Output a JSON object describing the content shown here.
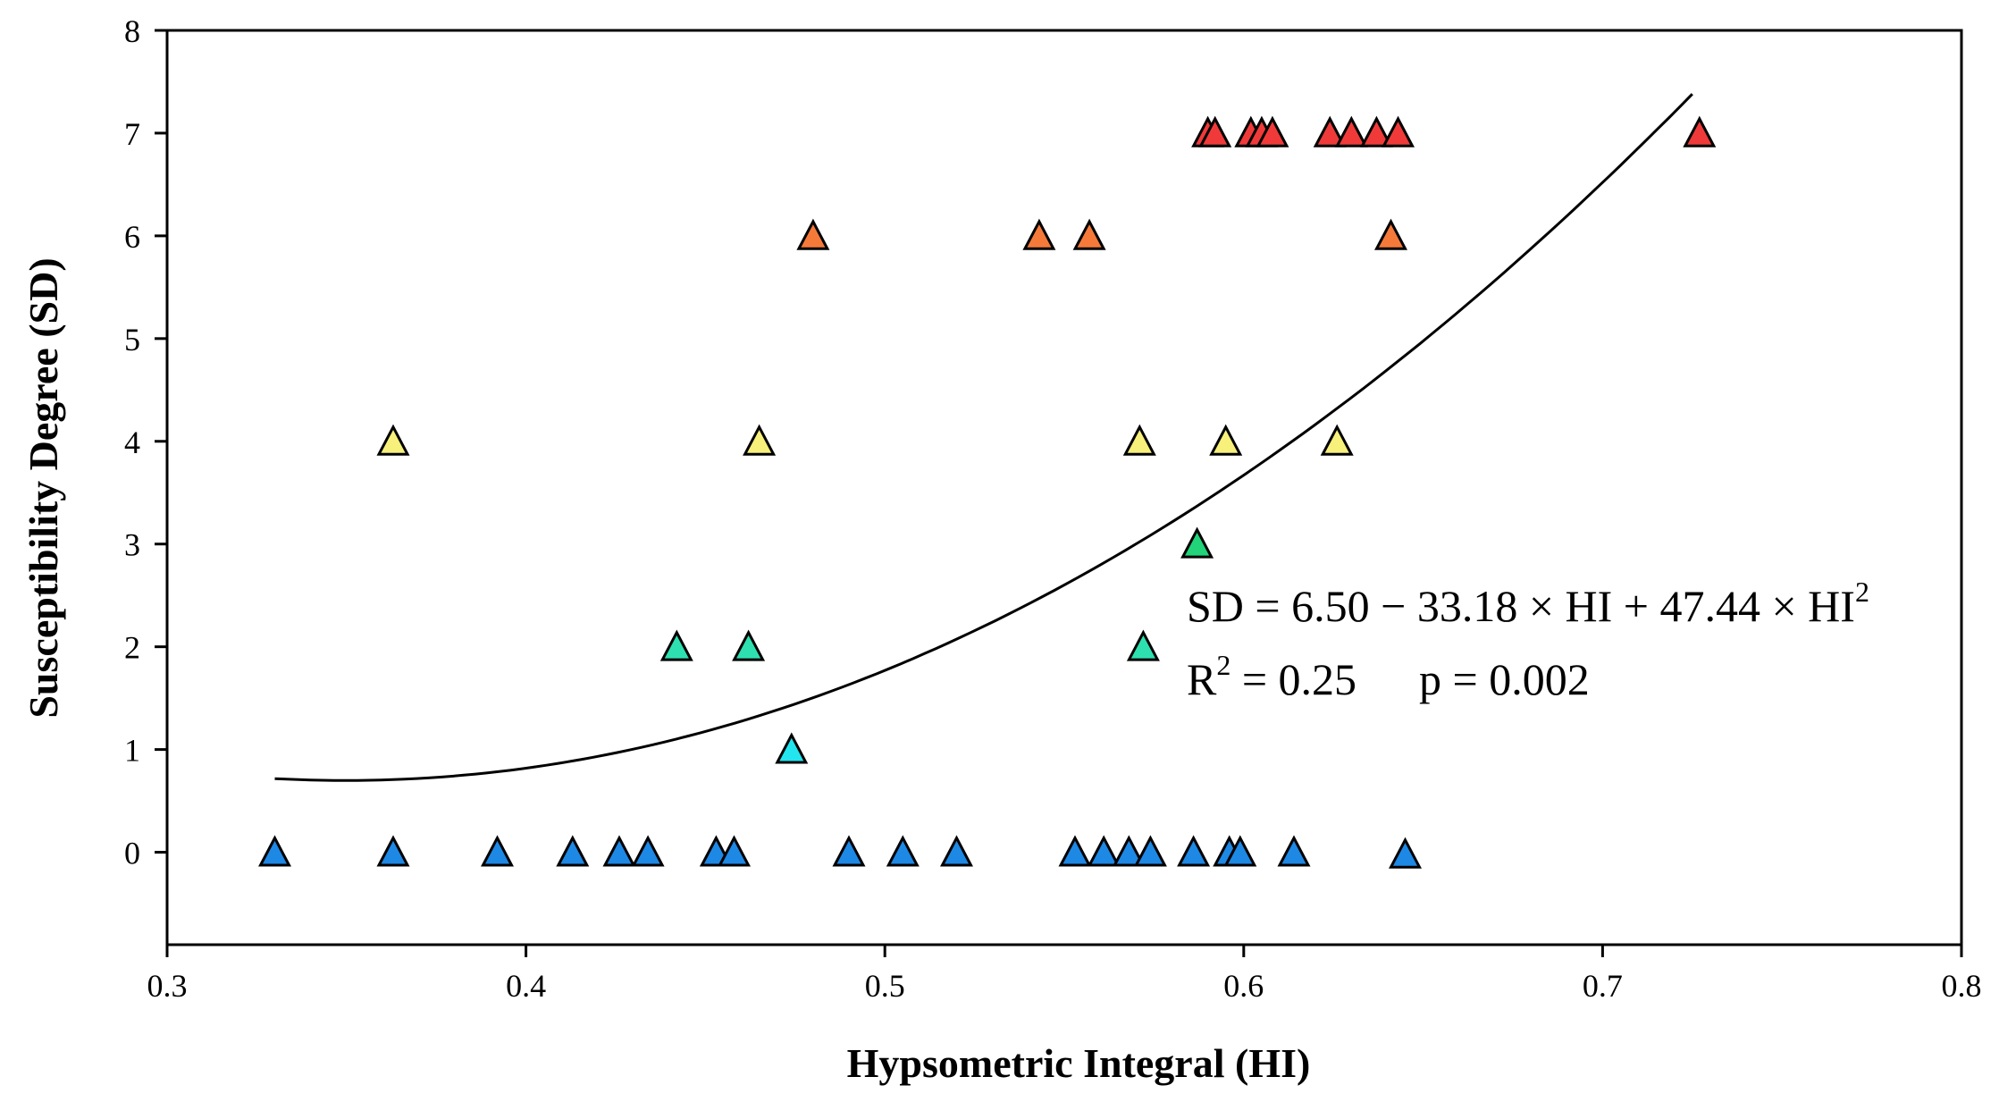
{
  "chart_data": {
    "type": "scatter",
    "title": "",
    "xlabel": "Hypsometric Integral (HI)",
    "ylabel": "Susceptibility Degree (SD)",
    "xlim": [
      0.3,
      0.8
    ],
    "ylim": [
      -0.9,
      8
    ],
    "x_ticks": [
      0.3,
      0.4,
      0.5,
      0.6,
      0.7,
      0.8
    ],
    "x_tick_labels": [
      "0.3",
      "0.4",
      "0.5",
      "0.6",
      "0.7",
      "0.8"
    ],
    "y_ticks": [
      0,
      1,
      2,
      3,
      4,
      5,
      6,
      7,
      8
    ],
    "y_tick_labels": [
      "0",
      "1",
      "2",
      "3",
      "4",
      "5",
      "6",
      "7",
      "8"
    ],
    "marker": "triangle",
    "sd_colors": {
      "0": "#1E88E5",
      "1": "#22E5F0",
      "2": "#2EE0B0",
      "3": "#22D37A",
      "4": "#F7F07A",
      "6": "#F57A3A",
      "7": "#F03A3A"
    },
    "points": [
      {
        "x": 0.33,
        "y": 0
      },
      {
        "x": 0.363,
        "y": 0
      },
      {
        "x": 0.392,
        "y": 0
      },
      {
        "x": 0.413,
        "y": 0
      },
      {
        "x": 0.426,
        "y": 0
      },
      {
        "x": 0.434,
        "y": 0
      },
      {
        "x": 0.453,
        "y": 0
      },
      {
        "x": 0.458,
        "y": 0
      },
      {
        "x": 0.49,
        "y": 0
      },
      {
        "x": 0.505,
        "y": 0
      },
      {
        "x": 0.52,
        "y": 0
      },
      {
        "x": 0.553,
        "y": 0
      },
      {
        "x": 0.561,
        "y": 0
      },
      {
        "x": 0.568,
        "y": 0
      },
      {
        "x": 0.574,
        "y": 0
      },
      {
        "x": 0.586,
        "y": 0
      },
      {
        "x": 0.596,
        "y": 0
      },
      {
        "x": 0.599,
        "y": 0
      },
      {
        "x": 0.614,
        "y": 0
      },
      {
        "x": 0.645,
        "y": -0.02
      },
      {
        "x": 0.474,
        "y": 1
      },
      {
        "x": 0.442,
        "y": 2
      },
      {
        "x": 0.462,
        "y": 2
      },
      {
        "x": 0.572,
        "y": 2
      },
      {
        "x": 0.587,
        "y": 3
      },
      {
        "x": 0.363,
        "y": 4
      },
      {
        "x": 0.465,
        "y": 4
      },
      {
        "x": 0.571,
        "y": 4
      },
      {
        "x": 0.595,
        "y": 4
      },
      {
        "x": 0.626,
        "y": 4
      },
      {
        "x": 0.48,
        "y": 6
      },
      {
        "x": 0.543,
        "y": 6
      },
      {
        "x": 0.557,
        "y": 6
      },
      {
        "x": 0.641,
        "y": 6
      },
      {
        "x": 0.59,
        "y": 7
      },
      {
        "x": 0.592,
        "y": 7
      },
      {
        "x": 0.602,
        "y": 7
      },
      {
        "x": 0.605,
        "y": 7
      },
      {
        "x": 0.608,
        "y": 7
      },
      {
        "x": 0.624,
        "y": 7
      },
      {
        "x": 0.63,
        "y": 7
      },
      {
        "x": 0.637,
        "y": 7
      },
      {
        "x": 0.643,
        "y": 7
      },
      {
        "x": 0.727,
        "y": 7
      }
    ],
    "fit": {
      "type": "quadratic",
      "coefficients": [
        6.5,
        -33.18,
        47.44
      ],
      "x_range": [
        0.33,
        0.725
      ]
    },
    "annotations": {
      "equation": "SD = 6.50 − 33.18 × HI + 47.44 × HI",
      "equation_sup": "2",
      "r2_label": "R",
      "r2_sup": "2",
      "r2_value": " = 0.25",
      "p_value": "p = 0.002"
    }
  }
}
